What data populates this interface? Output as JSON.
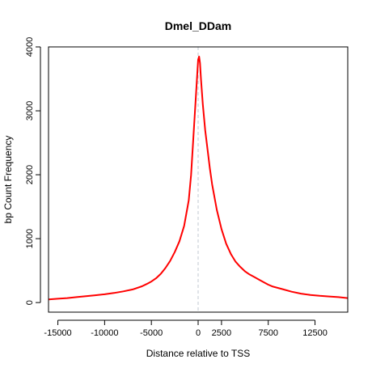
{
  "chart_data": {
    "type": "line",
    "title": "Dmel_DDam",
    "xlabel": "Distance relative to TSS",
    "ylabel": "bp Count Frequency",
    "xlim": [
      -16000,
      16000
    ],
    "ylim": [
      -150,
      4000
    ],
    "xticks": [
      -15000,
      -10000,
      -5000,
      0,
      2500,
      7500,
      12500
    ],
    "xtick_labels": [
      "-15000",
      "-10000",
      "-5000",
      "0",
      "2500",
      "7500",
      "12500"
    ],
    "yticks": [
      0,
      1000,
      2000,
      3000,
      4000
    ],
    "ytick_labels": [
      "0",
      "1000",
      "2000",
      "3000",
      "4000"
    ],
    "reference_line_x": 0,
    "grid": false,
    "line_color": "#ff0000",
    "reference_line_color": "#c0c8d0",
    "series": [
      {
        "color": "#ff0000",
        "x": [
          -16000,
          -15000,
          -14000,
          -13000,
          -12000,
          -11000,
          -10000,
          -9000,
          -8000,
          -7000,
          -6000,
          -5500,
          -5000,
          -4500,
          -4000,
          -3500,
          -3000,
          -2500,
          -2000,
          -1500,
          -1000,
          -750,
          -500,
          -250,
          0,
          100,
          200,
          300,
          500,
          750,
          1000,
          1250,
          1500,
          2000,
          2500,
          3000,
          3500,
          4000,
          4500,
          5000,
          5500,
          6000,
          6500,
          7000,
          7500,
          8000,
          9000,
          10000,
          11000,
          12000,
          13000,
          14000,
          15000,
          16000
        ],
        "y": [
          50,
          60,
          70,
          85,
          100,
          115,
          130,
          150,
          175,
          205,
          255,
          290,
          330,
          380,
          450,
          540,
          650,
          790,
          960,
          1200,
          1600,
          2000,
          2600,
          3200,
          3800,
          3850,
          3750,
          3500,
          3100,
          2700,
          2400,
          2100,
          1850,
          1450,
          1150,
          920,
          760,
          640,
          560,
          490,
          440,
          400,
          360,
          320,
          280,
          250,
          210,
          170,
          140,
          120,
          105,
          95,
          85,
          70
        ]
      }
    ]
  }
}
